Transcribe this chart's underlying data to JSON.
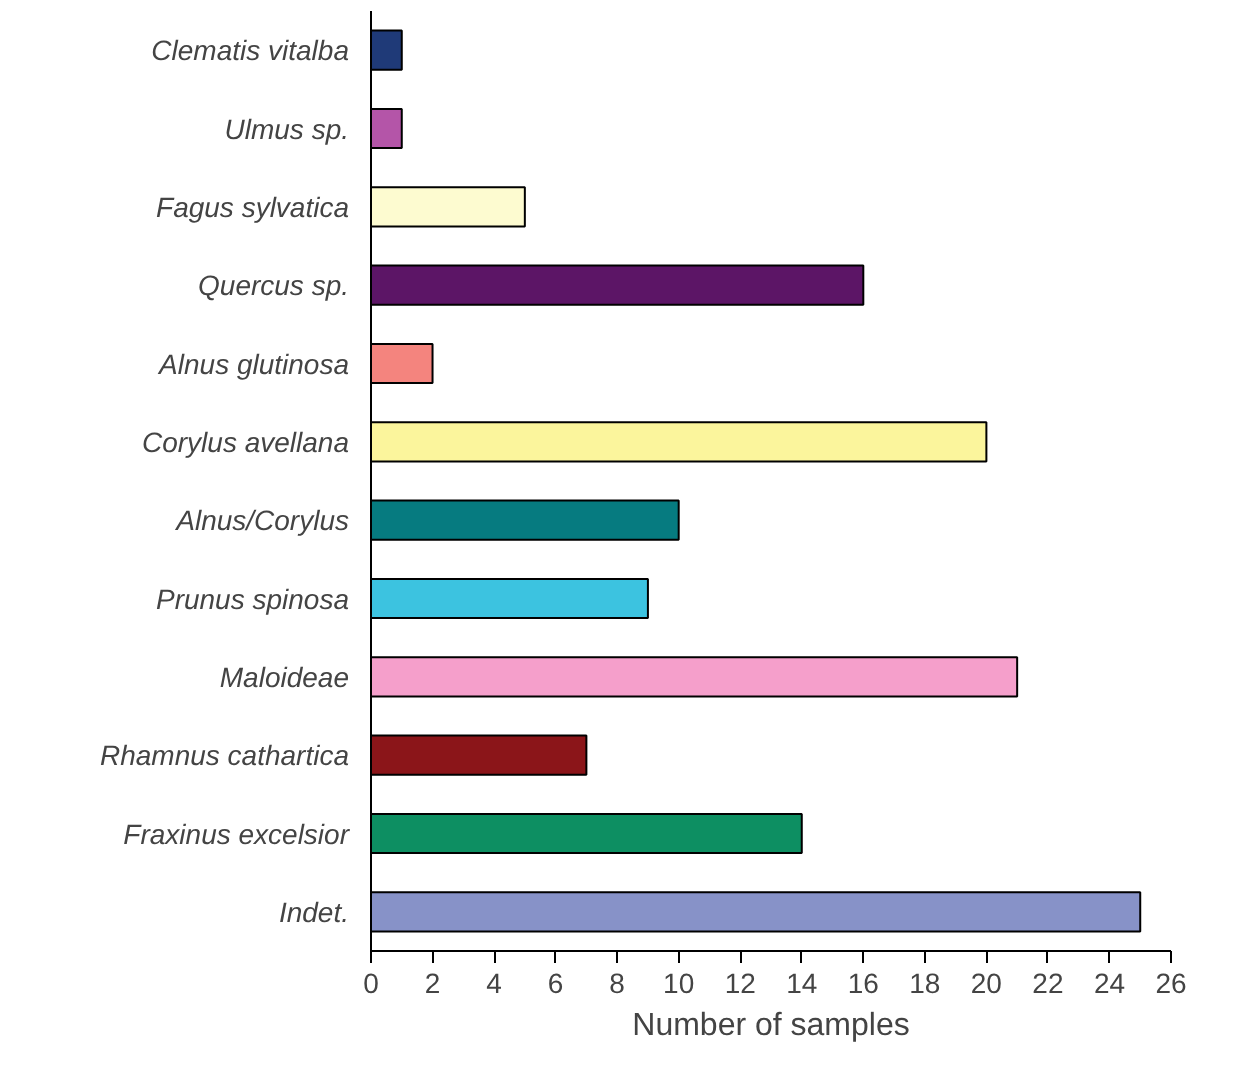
{
  "chart_data": {
    "type": "bar",
    "orientation": "horizontal",
    "xlabel": "Number of samples",
    "categories": [
      "Clematis vitalba",
      "Ulmus sp.",
      "Fagus sylvatica",
      "Quercus sp.",
      "Alnus glutinosa",
      "Corylus avellana",
      "Alnus/Corylus",
      "Prunus spinosa",
      "Maloideae",
      "Rhamnus cathartica",
      "Fraxinus excelsior",
      "Indet."
    ],
    "values": [
      1,
      1,
      5,
      16,
      2,
      20,
      10,
      9,
      21,
      7,
      14,
      25
    ],
    "colors": [
      "#1f3a78",
      "#b455a8",
      "#fdfbd0",
      "#5c1566",
      "#f4847e",
      "#fbf59c",
      "#067b80",
      "#3cc3e0",
      "#f59fcb",
      "#8b1519",
      "#0d8f62",
      "#8792c8"
    ],
    "xlim": [
      0,
      26
    ],
    "xticks": [
      0,
      2,
      4,
      6,
      8,
      10,
      12,
      14,
      16,
      18,
      20,
      22,
      24,
      26
    ],
    "grid": false
  }
}
